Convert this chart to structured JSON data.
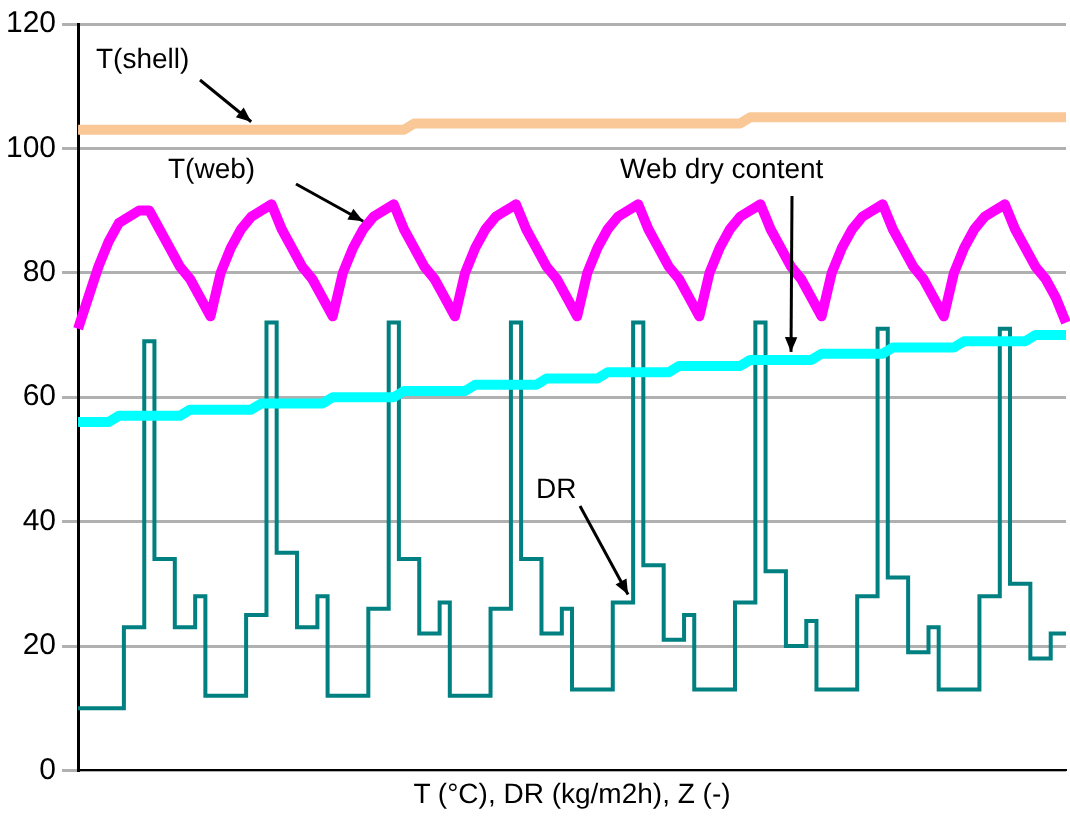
{
  "chart_data": {
    "type": "line",
    "xlabel": "T (°C), DR (kg/m2h), Z (-)",
    "categories": [
      null,
      null,
      null,
      null,
      null,
      null,
      null,
      null,
      null,
      null,
      null,
      null,
      null,
      null,
      null,
      null,
      null,
      null,
      null,
      null,
      null,
      null,
      null,
      null,
      null,
      null,
      null,
      null,
      null,
      null,
      null,
      null,
      null,
      null,
      null,
      null,
      null,
      null,
      null,
      null,
      null,
      null,
      null,
      null,
      null,
      null,
      null,
      null,
      null,
      null,
      null,
      null,
      null,
      null,
      null,
      null,
      null,
      null,
      null,
      null,
      null,
      null,
      null,
      null,
      null,
      null,
      null,
      null,
      null,
      null,
      null,
      null,
      null,
      null,
      null,
      null,
      null,
      null,
      null,
      null,
      null,
      null,
      null,
      null,
      null,
      null,
      null,
      null,
      null,
      null,
      null,
      null,
      null,
      null,
      null,
      null,
      null,
      null
    ],
    "ylim": [
      0,
      120
    ],
    "yticks": [
      0,
      20,
      40,
      60,
      80,
      100,
      120
    ],
    "grid": "y",
    "legend": false,
    "tick_labels": "y",
    "marker": "none",
    "series": [
      {
        "name": "T(shell)",
        "color": "#fac896",
        "values": [
          103,
          103,
          103,
          103,
          103,
          103,
          103,
          103,
          103,
          103,
          103,
          103,
          103,
          103,
          103,
          103,
          103,
          103,
          103,
          103,
          103,
          103,
          103,
          103,
          103,
          103,
          103,
          103,
          103,
          103,
          103,
          103,
          103,
          104,
          104,
          104,
          104,
          104,
          104,
          104,
          104,
          104,
          104,
          104,
          104,
          104,
          104,
          104,
          104,
          104,
          104,
          104,
          104,
          104,
          104,
          104,
          104,
          104,
          104,
          104,
          104,
          104,
          104,
          104,
          104,
          104,
          105,
          105,
          105,
          105,
          105,
          105,
          105,
          105,
          105,
          105,
          105,
          105,
          105,
          105,
          105,
          105,
          105,
          105,
          105,
          105,
          105,
          105,
          105,
          105,
          105,
          105,
          105,
          105,
          105,
          105,
          105,
          105
        ]
      },
      {
        "name": "T(web)",
        "color": "#ff00ff",
        "values": [
          71,
          76,
          81,
          85,
          88,
          89,
          90,
          90,
          87,
          84,
          81,
          79,
          76,
          73,
          80,
          84,
          87,
          89,
          90,
          91,
          87,
          84,
          81,
          79,
          76,
          73,
          80,
          84,
          87,
          89,
          90,
          91,
          87,
          84,
          81,
          79,
          76,
          73,
          80,
          84,
          87,
          89,
          90,
          91,
          87,
          84,
          81,
          79,
          76,
          73,
          80,
          84,
          87,
          89,
          90,
          91,
          87,
          84,
          81,
          79,
          76,
          73,
          80,
          84,
          87,
          89,
          90,
          91,
          87,
          84,
          81,
          79,
          76,
          73,
          80,
          84,
          87,
          89,
          90,
          91,
          87,
          84,
          81,
          79,
          76,
          73,
          80,
          84,
          87,
          89,
          90,
          91,
          87,
          84,
          81,
          79,
          76,
          72
        ]
      },
      {
        "name": "Web dry content",
        "color": "#00ffff",
        "values": [
          56,
          56,
          56,
          56,
          57,
          57,
          57,
          57,
          57,
          57,
          57,
          58,
          58,
          58,
          58,
          58,
          58,
          58,
          59,
          59,
          59,
          59,
          59,
          59,
          59,
          60,
          60,
          60,
          60,
          60,
          60,
          60,
          61,
          61,
          61,
          61,
          61,
          61,
          61,
          62,
          62,
          62,
          62,
          62,
          62,
          62,
          63,
          63,
          63,
          63,
          63,
          63,
          64,
          64,
          64,
          64,
          64,
          64,
          64,
          65,
          65,
          65,
          65,
          65,
          65,
          65,
          66,
          66,
          66,
          66,
          66,
          66,
          66,
          67,
          67,
          67,
          67,
          67,
          67,
          67,
          68,
          68,
          68,
          68,
          68,
          68,
          68,
          69,
          69,
          69,
          69,
          69,
          69,
          69,
          70,
          70,
          70,
          70
        ]
      },
      {
        "name": "DR",
        "type": "step",
        "color": "#008080",
        "values": [
          10,
          10,
          10,
          10,
          10,
          23,
          23,
          69,
          34,
          34,
          23,
          23,
          28,
          12,
          12,
          12,
          12,
          25,
          25,
          72,
          35,
          35,
          23,
          23,
          28,
          12,
          12,
          12,
          12,
          26,
          26,
          72,
          34,
          34,
          22,
          22,
          27,
          12,
          12,
          12,
          12,
          26,
          26,
          72,
          34,
          34,
          22,
          22,
          26,
          13,
          13,
          13,
          13,
          27,
          27,
          72,
          33,
          33,
          21,
          21,
          25,
          13,
          13,
          13,
          13,
          27,
          27,
          72,
          32,
          32,
          20,
          20,
          24,
          13,
          13,
          13,
          13,
          28,
          28,
          71,
          31,
          31,
          19,
          19,
          23,
          13,
          13,
          13,
          13,
          28,
          28,
          71,
          30,
          30,
          18,
          18,
          22,
          22
        ]
      }
    ]
  }
}
